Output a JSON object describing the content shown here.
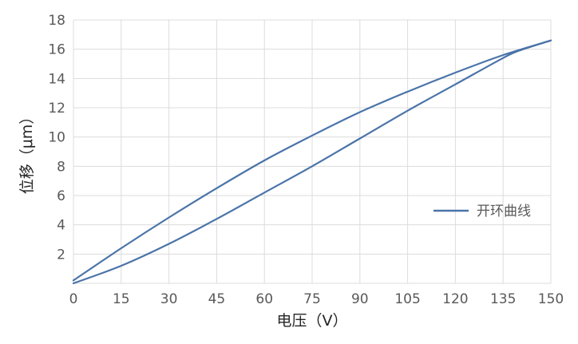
{
  "chart_data": {
    "type": "line",
    "xlabel": "电压（V）",
    "ylabel": "位移（μm）",
    "xlim": [
      0,
      150
    ],
    "ylim": [
      0,
      18
    ],
    "xticks": [
      0,
      15,
      30,
      45,
      60,
      75,
      90,
      105,
      120,
      135,
      150
    ],
    "yticks": [
      2,
      4,
      6,
      8,
      10,
      12,
      14,
      16,
      18
    ],
    "grid": true,
    "legend_position": "right",
    "series": [
      {
        "name": "开环曲线",
        "color": "#4a74a8",
        "segments": [
          {
            "x": [
              0,
              15,
              30,
              45,
              60,
              75,
              90,
              105,
              120,
              135,
              150
            ],
            "y": [
              0.2,
              2.4,
              4.5,
              6.5,
              8.4,
              10.1,
              11.7,
              13.1,
              14.4,
              15.6,
              16.6
            ]
          },
          {
            "x": [
              150,
              140,
              135,
              120,
              105,
              90,
              75,
              60,
              45,
              30,
              15,
              0
            ],
            "y": [
              16.6,
              15.9,
              15.4,
              13.6,
              11.8,
              9.9,
              8.0,
              6.2,
              4.4,
              2.7,
              1.2,
              0.0
            ]
          }
        ]
      }
    ]
  }
}
